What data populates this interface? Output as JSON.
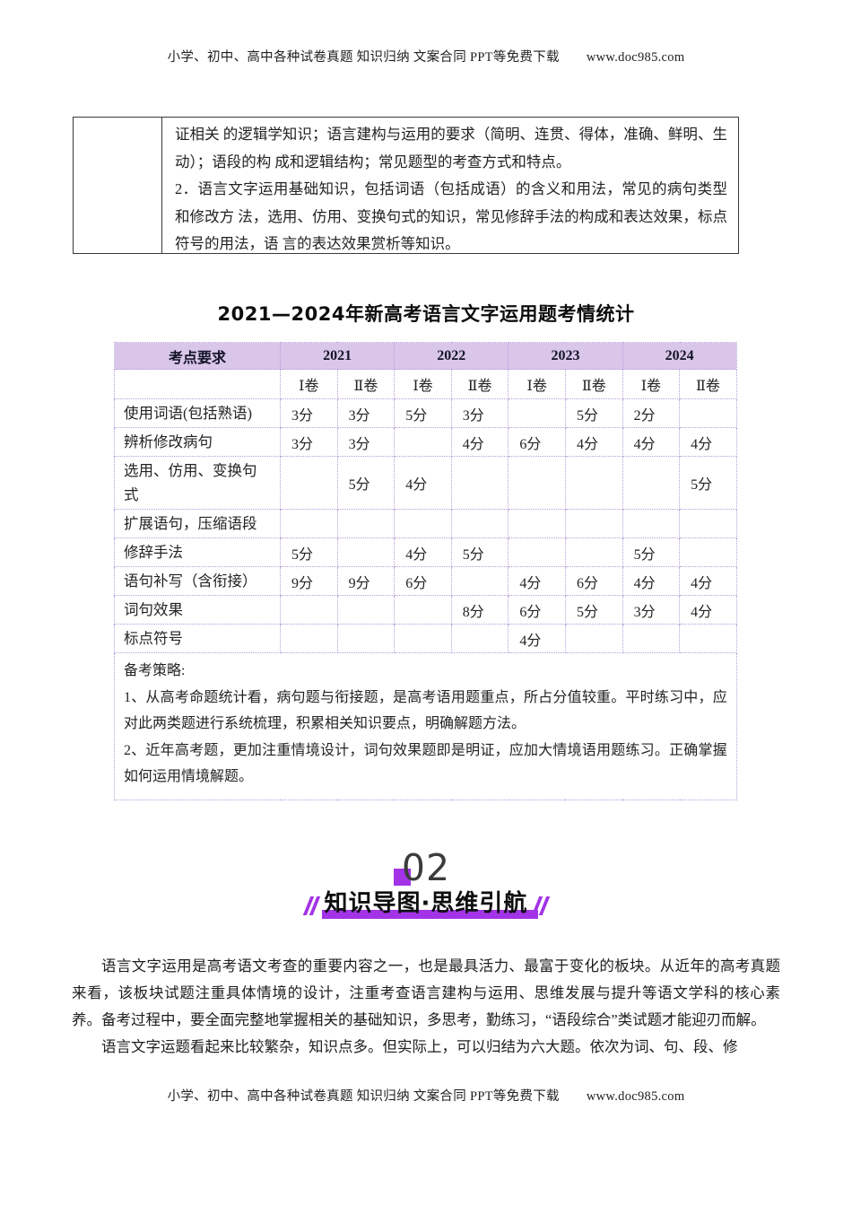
{
  "colors": {
    "accent_purple": "#a233e6",
    "table_header_bg": "#d9c6e9",
    "table_border_purple": "#b49fd9"
  },
  "page_header": {
    "text": "小学、初中、高中各种试卷真题 知识归纳 文案合同 PPT等免费下载",
    "url": "www.doc985.com"
  },
  "page_footer": {
    "text": "小学、初中、高中各种试卷真题 知识归纳 文案合同 PPT等免费下载",
    "url": "www.doc985.com"
  },
  "fragment_table": {
    "left_cell": "",
    "paragraph1": "证相关 的逻辑学知识；语言建构与运用的要求（简明、连贯、得体，准确、鲜明、生动）；语段的构 成和逻辑结构；常见题型的考查方式和特点。",
    "paragraph2": "2．语言文字运用基础知识，包括词语（包括成语）的含义和用法，常见的病句类型和修改方 法，选用、仿用、变换句式的知识，常见修辞手法的构成和表达效果，标点符号的用法，语 言的表达效果赏析等知识。"
  },
  "stats_title": "2021—2024年新高考语言文字运用题考情统计",
  "stats_table": {
    "col0_header": "考点要求",
    "years": [
      "2021",
      "2022",
      "2023",
      "2024"
    ],
    "subheaders": [
      "Ⅰ卷",
      "Ⅱ卷",
      "Ⅰ卷",
      "Ⅱ卷",
      "Ⅰ卷",
      "Ⅱ卷",
      "Ⅰ卷",
      "Ⅱ卷"
    ],
    "rows": [
      {
        "label": "使用词语(包括熟语)",
        "values": [
          "3分",
          "3分",
          "5分",
          "3分",
          "",
          "5分",
          "2分",
          ""
        ]
      },
      {
        "label": "辨析修改病句",
        "values": [
          "3分",
          "3分",
          "",
          "4分",
          "6分",
          "4分",
          "4分",
          "4分"
        ]
      },
      {
        "label": "选用、仿用、变换句式",
        "values": [
          "",
          "5分",
          "4分",
          "",
          "",
          "",
          "",
          "5分"
        ]
      },
      {
        "label": "扩展语句，压缩语段",
        "values": [
          "",
          "",
          "",
          "",
          "",
          "",
          "",
          ""
        ]
      },
      {
        "label": "修辞手法",
        "values": [
          "5分",
          "",
          "4分",
          "5分",
          "",
          "",
          "5分",
          ""
        ]
      },
      {
        "label": "语句补写（含衔接）",
        "values": [
          "9分",
          "9分",
          "6分",
          "",
          "4分",
          "6分",
          "4分",
          "4分"
        ]
      },
      {
        "label": "词句效果",
        "values": [
          "",
          "",
          "",
          "8分",
          "6分",
          "5分",
          "3分",
          "4分"
        ]
      },
      {
        "label": "标点符号",
        "values": [
          "",
          "",
          "",
          "",
          "4分",
          "",
          "",
          ""
        ]
      }
    ],
    "strategy": {
      "title": "备考策略:",
      "items": [
        "1、从高考命题统计看，病句题与衔接题，是高考语用题重点，所占分值较重。平时练习中，应对此两类题进行系统梳理，积累相关知识要点，明确解题方法。",
        "2、近年高考题，更加注重情境设计，词句效果题即是明证，应加大情境语用题练习。正确掌握如何运用情境解题。"
      ]
    }
  },
  "section02": {
    "number": "02",
    "banner": "知识导图·思维引航"
  },
  "body_paragraphs": [
    "语言文字运用是高考语文考查的重要内容之一，也是最具活力、最富于变化的板块。从近年的高考真题来看，该板块试题注重具体情境的设计，注重考查语言建构与运用、思维发展与提升等语文学科的核心素养。备考过程中，要全面完整地掌握相关的基础知识，多思考，勤练习，“语段综合”类试题才能迎刃而解。",
    "语言文字运题看起来比较繁杂，知识点多。但实际上，可以归结为六大题。依次为词、句、段、修"
  ]
}
